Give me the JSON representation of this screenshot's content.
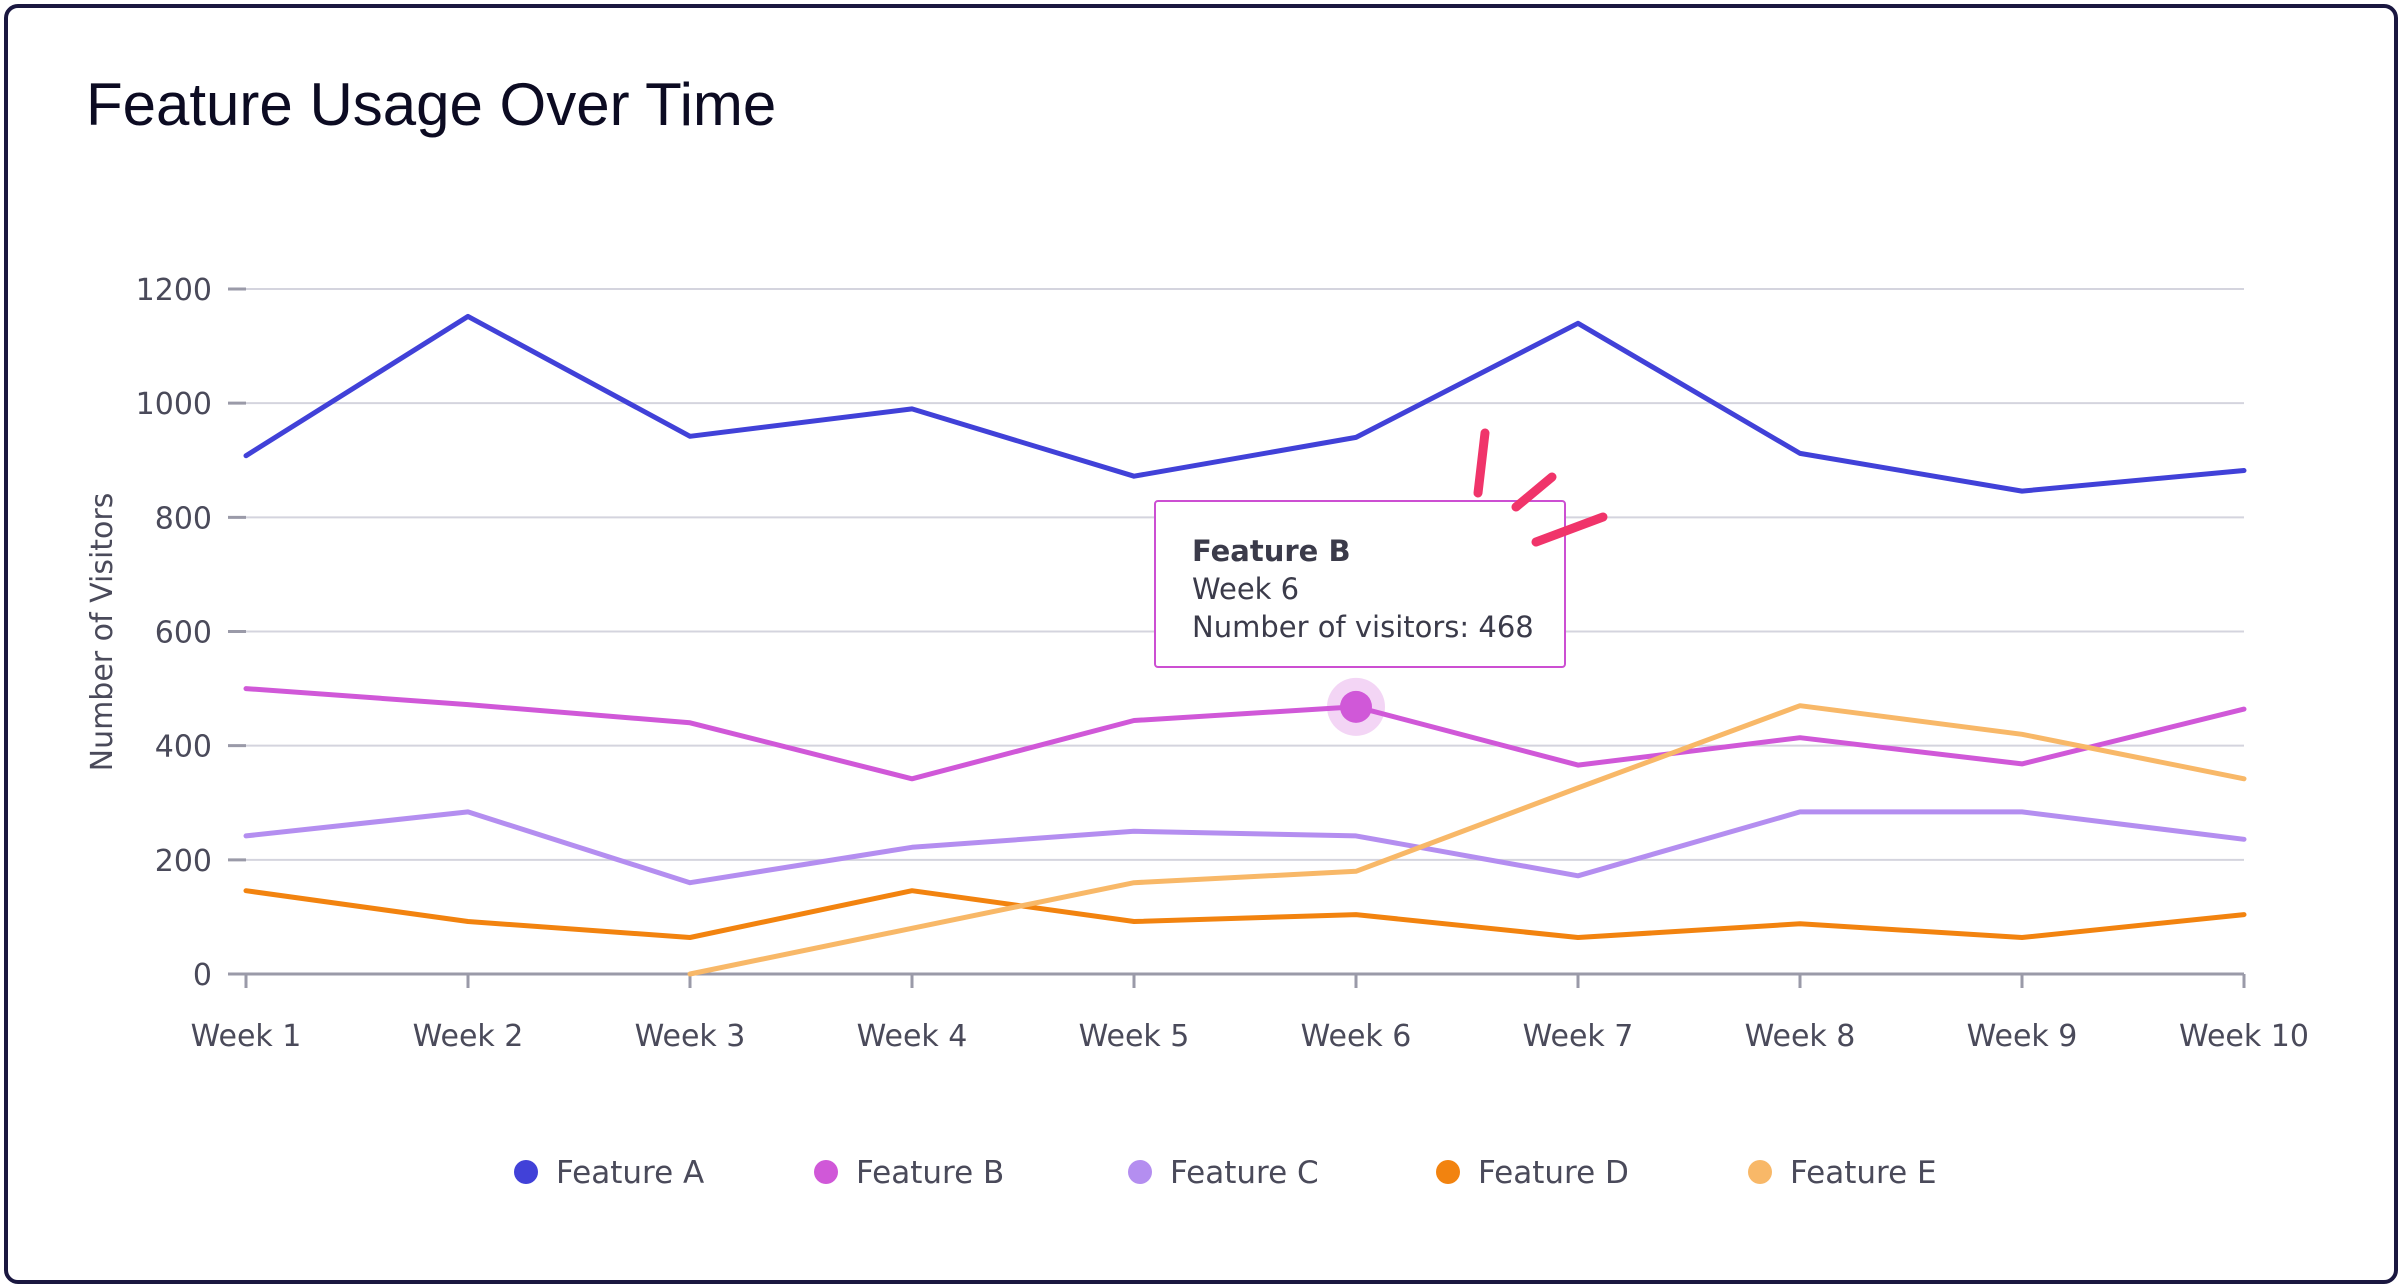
{
  "chart_data": {
    "type": "line",
    "title": "Feature Usage Over Time",
    "xlabel": "",
    "ylabel": "Number of Visitors",
    "ylim": [
      0,
      1200
    ],
    "yticks": [
      "0",
      "200",
      "400",
      "600",
      "800",
      "1000",
      "1200"
    ],
    "categories": [
      "Week 1",
      "Week 2",
      "Week 3",
      "Week 4",
      "Week 5",
      "Week 6",
      "Week 7",
      "Week 8",
      "Week 9",
      "Week 10"
    ],
    "grid": true,
    "legend_position": "bottom",
    "series": [
      {
        "name": "Feature A",
        "color": "#4141d8",
        "values": [
          908,
          1152,
          942,
          990,
          872,
          940,
          1140,
          912,
          846,
          882
        ]
      },
      {
        "name": "Feature B",
        "color": "#d058d8",
        "values": [
          500,
          472,
          440,
          342,
          444,
          468,
          366,
          414,
          368,
          464
        ]
      },
      {
        "name": "Feature C",
        "color": "#b48ef0",
        "values": [
          242,
          284,
          160,
          222,
          250,
          242,
          172,
          284,
          284,
          236
        ]
      },
      {
        "name": "Feature D",
        "color": "#f2830f",
        "values": [
          146,
          92,
          64,
          146,
          92,
          104,
          64,
          88,
          64,
          104
        ]
      },
      {
        "name": "Feature E",
        "color": "#f8b868",
        "values": [
          null,
          null,
          0,
          80,
          160,
          180,
          326,
          470,
          420,
          342
        ]
      }
    ],
    "highlight": {
      "series": 1,
      "index": 5
    }
  },
  "tooltip": {
    "title": "Feature B",
    "line1": "Week 6",
    "line2": "Number of visitors: 468"
  }
}
